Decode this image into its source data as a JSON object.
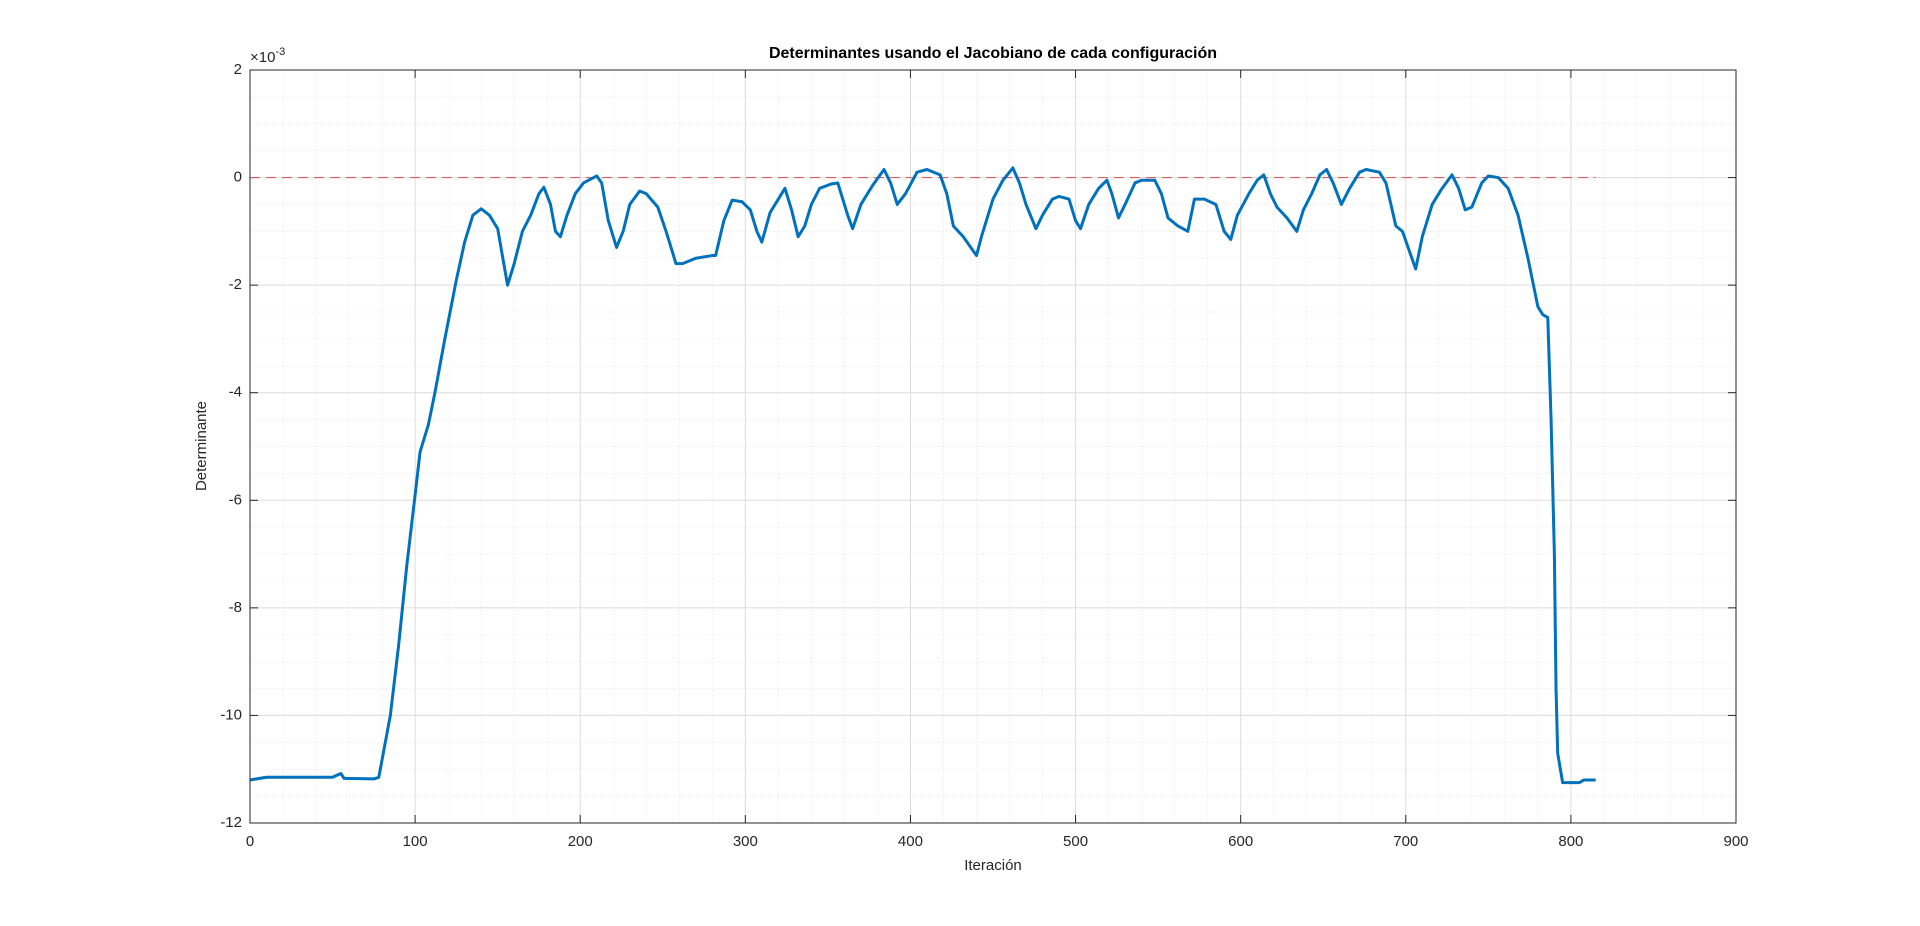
{
  "chart_data": {
    "type": "line",
    "title": "Determinantes usando el Jacobiano de cada configuración",
    "x_label": "Iteración",
    "y_label": "Determinante",
    "axis_multiplier": {
      "base": "×10",
      "exponent": "-3"
    },
    "xlim": [
      0,
      900
    ],
    "xticks": [
      0,
      100,
      200,
      300,
      400,
      500,
      600,
      700,
      800,
      900
    ],
    "ylim": [
      -12,
      2
    ],
    "yticks": [
      -12,
      -10,
      -8,
      -6,
      -4,
      -2,
      0,
      2
    ],
    "grid": true,
    "minor_grid": true,
    "reference_line": {
      "y": 0,
      "x": [
        0,
        815
      ],
      "color": "#e06060",
      "style": "dashed"
    },
    "series": [
      {
        "color": "#0072bd",
        "x": [
          0,
          10,
          50,
          55,
          57,
          75,
          78,
          85,
          90,
          95,
          100,
          103,
          108,
          112,
          118,
          125,
          130,
          135,
          140,
          145,
          150,
          156,
          160,
          165,
          170,
          175,
          178,
          182,
          185,
          188,
          192,
          197,
          202,
          210,
          213,
          217,
          222,
          226,
          230,
          236,
          240,
          247,
          252,
          258,
          262,
          270,
          280,
          282,
          287,
          292,
          298,
          303,
          307,
          310,
          315,
          320,
          324,
          328,
          332,
          336,
          340,
          345,
          352,
          356,
          362,
          365,
          370,
          377,
          384,
          388,
          392,
          397,
          404,
          410,
          418,
          422,
          426,
          432,
          440,
          443,
          450,
          456,
          462,
          466,
          470,
          476,
          480,
          486,
          490,
          496,
          500,
          503,
          508,
          514,
          519,
          522,
          526,
          530,
          536,
          540,
          548,
          552,
          556,
          562,
          568,
          572,
          578,
          585,
          590,
          594,
          598,
          605,
          610,
          614,
          618,
          622,
          628,
          634,
          638,
          643,
          648,
          652,
          656,
          661,
          666,
          672,
          676,
          684,
          688,
          694,
          698,
          706,
          710,
          716,
          722,
          728,
          732,
          736,
          740,
          746,
          750,
          756,
          762,
          768,
          774,
          780,
          783,
          786,
          788,
          790,
          791,
          792,
          795,
          805,
          808,
          815
        ],
        "values": [
          -11.2,
          -11.15,
          -11.15,
          -11.08,
          -11.17,
          -11.18,
          -11.15,
          -10,
          -8.7,
          -7.2,
          -5.9,
          -5.1,
          -4.6,
          -4.0,
          -3.0,
          -1.9,
          -1.2,
          -0.7,
          -0.58,
          -0.7,
          -0.95,
          -2.0,
          -1.6,
          -1.0,
          -0.7,
          -0.3,
          -0.18,
          -0.5,
          -1.0,
          -1.1,
          -0.7,
          -0.3,
          -0.1,
          0.03,
          -0.1,
          -0.8,
          -1.3,
          -1.0,
          -0.5,
          -0.25,
          -0.3,
          -0.55,
          -1.0,
          -1.6,
          -1.6,
          -1.5,
          -1.45,
          -1.45,
          -0.8,
          -0.42,
          -0.45,
          -0.6,
          -1.0,
          -1.2,
          -0.65,
          -0.4,
          -0.2,
          -0.6,
          -1.1,
          -0.9,
          -0.5,
          -0.2,
          -0.12,
          -0.1,
          -0.7,
          -0.95,
          -0.5,
          -0.15,
          0.15,
          -0.1,
          -0.5,
          -0.3,
          0.1,
          0.15,
          0.05,
          -0.3,
          -0.9,
          -1.1,
          -1.45,
          -1.1,
          -0.4,
          -0.05,
          0.18,
          -0.1,
          -0.5,
          -0.95,
          -0.7,
          -0.4,
          -0.35,
          -0.4,
          -0.8,
          -0.95,
          -0.5,
          -0.2,
          -0.05,
          -0.3,
          -0.75,
          -0.5,
          -0.1,
          -0.05,
          -0.05,
          -0.3,
          -0.75,
          -0.9,
          -1.0,
          -0.4,
          -0.4,
          -0.5,
          -1.0,
          -1.15,
          -0.7,
          -0.3,
          -0.05,
          0.05,
          -0.3,
          -0.55,
          -0.75,
          -1.0,
          -0.6,
          -0.3,
          0.05,
          0.15,
          -0.1,
          -0.5,
          -0.2,
          0.1,
          0.15,
          0.1,
          -0.1,
          -0.9,
          -1.0,
          -1.7,
          -1.1,
          -0.5,
          -0.2,
          0.05,
          -0.2,
          -0.6,
          -0.55,
          -0.1,
          0.03,
          0.0,
          -0.2,
          -0.7,
          -1.5,
          -2.4,
          -2.55,
          -2.6,
          -4.5,
          -7,
          -9.5,
          -10.7,
          -11.25,
          -11.25,
          -11.2,
          -11.2
        ]
      }
    ]
  }
}
